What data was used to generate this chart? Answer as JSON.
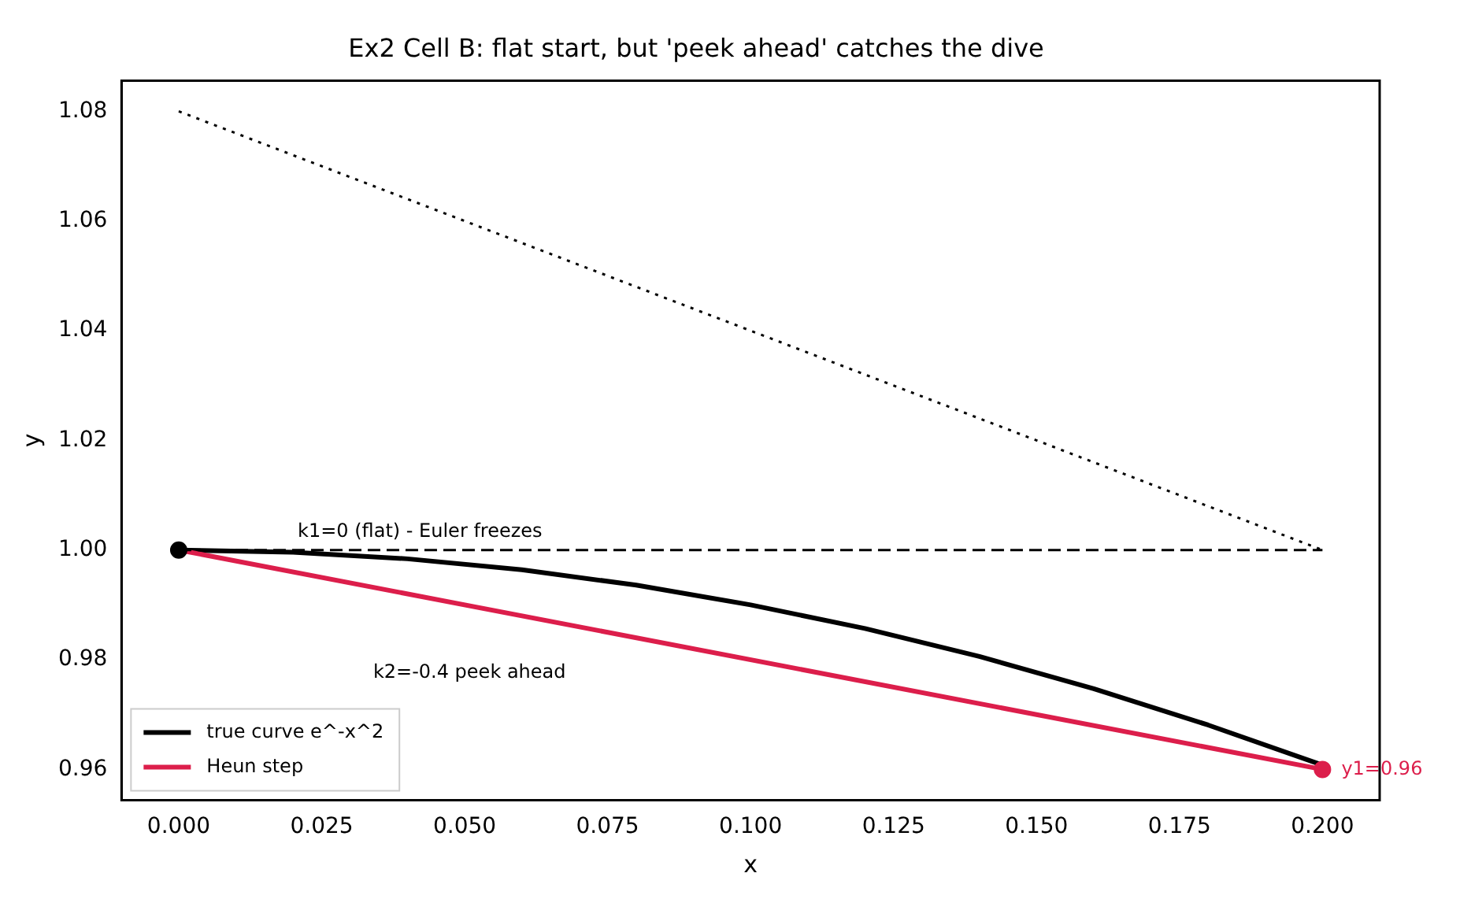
{
  "chart_data": {
    "type": "line",
    "title": "Ex2 Cell B: flat start, but 'peek ahead' catches the dive",
    "xlabel": "x",
    "ylabel": "y",
    "xlim": [
      -0.01,
      0.21
    ],
    "ylim": [
      0.9544,
      1.0856
    ],
    "xticks": [
      {
        "value": 0,
        "label": "0.000"
      },
      {
        "value": 0.025,
        "label": "0.025"
      },
      {
        "value": 0.05,
        "label": "0.050"
      },
      {
        "value": 0.075,
        "label": "0.075"
      },
      {
        "value": 0.1,
        "label": "0.100"
      },
      {
        "value": 0.125,
        "label": "0.125"
      },
      {
        "value": 0.15,
        "label": "0.150"
      },
      {
        "value": 0.175,
        "label": "0.175"
      },
      {
        "value": 0.2,
        "label": "0.200"
      }
    ],
    "yticks": [
      {
        "value": 0.96,
        "label": "0.96"
      },
      {
        "value": 0.98,
        "label": "0.98"
      },
      {
        "value": 1.0,
        "label": "1.00"
      },
      {
        "value": 1.02,
        "label": "1.02"
      },
      {
        "value": 1.04,
        "label": "1.04"
      },
      {
        "value": 1.06,
        "label": "1.06"
      },
      {
        "value": 1.08,
        "label": "1.08"
      }
    ],
    "legend": "bottom left",
    "grid": false,
    "series": [
      {
        "name": "true curve e^-x^2",
        "type": "line",
        "color": "#000000",
        "line_style": "solid",
        "x": [
          0,
          0.02,
          0.04,
          0.06,
          0.08,
          0.1,
          0.12,
          0.14,
          0.16,
          0.18,
          0.2
        ],
        "values": [
          1,
          0.9996,
          0.9984,
          0.9964,
          0.9936,
          0.99,
          0.9857,
          0.9806,
          0.9747,
          0.9681,
          0.9608
        ]
      },
      {
        "name": "Heun step",
        "type": "line",
        "color": "#dc1e4b",
        "line_style": "solid",
        "x": [
          0,
          0.2
        ],
        "values": [
          1,
          0.96
        ]
      },
      {
        "type": "line",
        "color": "#000000",
        "line_style": "dashed",
        "x": [
          0,
          0.2
        ],
        "values": [
          1,
          1
        ]
      },
      {
        "type": "line",
        "color": "#000000",
        "line_style": "dotted",
        "x": [
          0,
          0.2
        ],
        "values": [
          1.08,
          1
        ]
      },
      {
        "type": "scatter",
        "color": "#000000",
        "marker": "circle",
        "x": [
          0
        ],
        "values": [
          1
        ]
      },
      {
        "type": "scatter",
        "color": "#dc1e4b",
        "marker": "circle",
        "x": [
          0.2
        ],
        "values": [
          0.96
        ],
        "value_labels": [
          "y1=0.96"
        ]
      }
    ],
    "annotations": [
      "k1=0 (flat) - Euler freezes",
      "k2=-0.4 peek ahead"
    ]
  }
}
